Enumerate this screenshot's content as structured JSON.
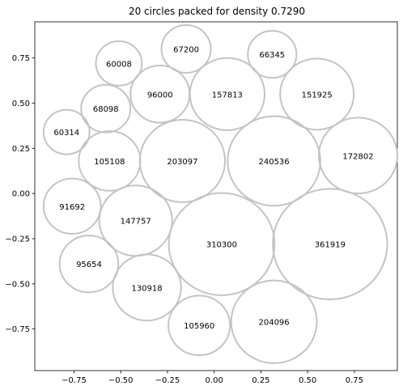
{
  "chart_data": {
    "type": "scatter",
    "title": "20 circles packed for density 0.7290",
    "xlabel": "",
    "ylabel": "",
    "xlim": [
      -0.96,
      0.98
    ],
    "ylim": [
      -0.98,
      0.95
    ],
    "xticks": [
      -0.75,
      -0.5,
      -0.25,
      0.0,
      0.25,
      0.5,
      0.75
    ],
    "xtick_labels": [
      "−0.75",
      "−0.50",
      "−0.25",
      "0.00",
      "0.25",
      "0.50",
      "0.75"
    ],
    "yticks": [
      0.75,
      0.5,
      0.25,
      0.0,
      -0.25,
      -0.5,
      -0.75
    ],
    "ytick_labels": [
      "0.75",
      "0.50",
      "0.25",
      "0.00",
      "−0.25",
      "−0.50",
      "−0.75"
    ],
    "grid": false,
    "circle_color": "#c4c4c4",
    "circles": [
      {
        "label": "67200",
        "x": -0.15,
        "y": 0.8,
        "r": 0.132
      },
      {
        "label": "66345",
        "x": 0.31,
        "y": 0.77,
        "r": 0.13
      },
      {
        "label": "60008",
        "x": -0.51,
        "y": 0.72,
        "r": 0.123
      },
      {
        "label": "96000",
        "x": -0.29,
        "y": 0.55,
        "r": 0.158
      },
      {
        "label": "157813",
        "x": 0.07,
        "y": 0.55,
        "r": 0.2
      },
      {
        "label": "151925",
        "x": 0.55,
        "y": 0.55,
        "r": 0.197
      },
      {
        "label": "68098",
        "x": -0.58,
        "y": 0.47,
        "r": 0.132
      },
      {
        "label": "60314",
        "x": -0.79,
        "y": 0.34,
        "r": 0.123
      },
      {
        "label": "105108",
        "x": -0.56,
        "y": 0.18,
        "r": 0.165
      },
      {
        "label": "203097",
        "x": -0.17,
        "y": 0.18,
        "r": 0.228
      },
      {
        "label": "240536",
        "x": 0.32,
        "y": 0.18,
        "r": 0.248
      },
      {
        "label": "172802",
        "x": 0.77,
        "y": 0.21,
        "r": 0.21
      },
      {
        "label": "91692",
        "x": -0.76,
        "y": -0.07,
        "r": 0.153
      },
      {
        "label": "147757",
        "x": -0.42,
        "y": -0.15,
        "r": 0.195
      },
      {
        "label": "310300",
        "x": 0.04,
        "y": -0.28,
        "r": 0.283
      },
      {
        "label": "361919",
        "x": 0.62,
        "y": -0.28,
        "r": 0.306
      },
      {
        "label": "95654",
        "x": -0.67,
        "y": -0.39,
        "r": 0.157
      },
      {
        "label": "130918",
        "x": -0.36,
        "y": -0.52,
        "r": 0.183
      },
      {
        "label": "105960",
        "x": -0.08,
        "y": -0.73,
        "r": 0.165
      },
      {
        "label": "204096",
        "x": 0.32,
        "y": -0.71,
        "r": 0.229
      }
    ]
  }
}
